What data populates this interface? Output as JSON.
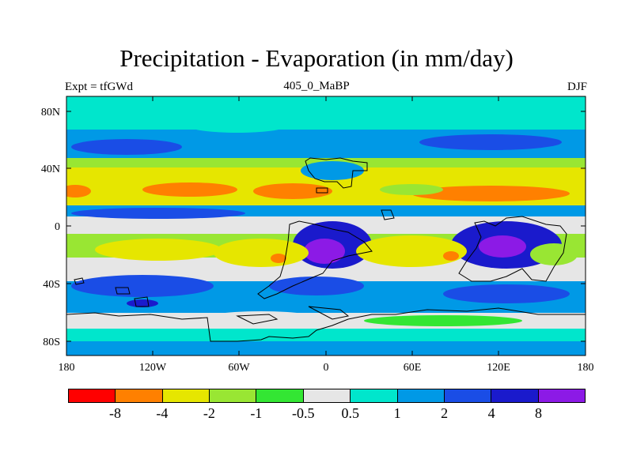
{
  "figure": {
    "title": "Precipitation - Evaporation (in mm/day)",
    "left_subtitle": "Expt = tfGWd",
    "center_subtitle": "405_0_MaBP",
    "right_subtitle": "DJF"
  },
  "axes": {
    "x_ticks": [
      "180",
      "120W",
      "60W",
      "0",
      "60E",
      "120E",
      "180"
    ],
    "y_ticks": [
      "80N",
      "40N",
      "0",
      "40S",
      "80S"
    ]
  },
  "colorbar": {
    "colors": [
      "#ff0000",
      "#ff8000",
      "#e6e600",
      "#99e633",
      "#33e633",
      "#e6e6e6",
      "#00e6cc",
      "#0099e6",
      "#1a4de6",
      "#1a1acc",
      "#8c1ae6"
    ],
    "labels": [
      "-8",
      "-4",
      "-2",
      "-1",
      "-0.5",
      "0.5",
      "1",
      "2",
      "4",
      "8"
    ]
  },
  "map": {
    "projection": "cylindrical-equidistant",
    "lon_range": [
      -180,
      180
    ],
    "lat_range": [
      -90,
      90
    ]
  }
}
